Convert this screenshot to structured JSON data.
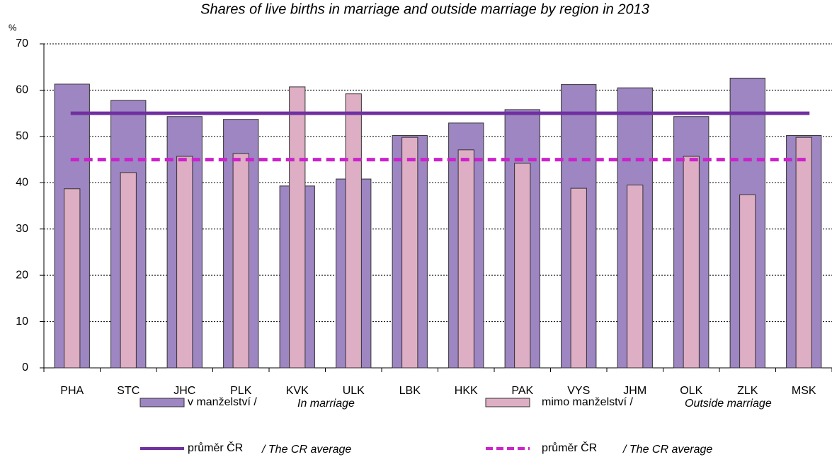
{
  "chart_data": {
    "type": "bar",
    "subtitle": "Shares of live births in marriage and outside marriage by region in 2013",
    "y_unit": "%",
    "categories": [
      "PHA",
      "STC",
      "JHC",
      "PLK",
      "KVK",
      "ULK",
      "LBK",
      "HKK",
      "PAK",
      "VYS",
      "JHM",
      "OLK",
      "ZLK",
      "MSK"
    ],
    "series": [
      {
        "name": "v manželství /",
        "name_en": "In marriage",
        "color": "#9d86c2",
        "values": [
          61.3,
          57.8,
          54.3,
          53.7,
          39.3,
          40.8,
          50.2,
          52.9,
          55.8,
          61.2,
          60.5,
          54.3,
          62.6,
          50.2
        ]
      },
      {
        "name": "mimo manželství /",
        "name_en": "Outside marriage",
        "color": "#deaec4",
        "values": [
          38.7,
          42.2,
          45.7,
          46.3,
          60.7,
          59.2,
          49.8,
          47.1,
          44.2,
          38.8,
          39.5,
          45.7,
          37.4,
          49.8
        ]
      }
    ],
    "averages": [
      {
        "name": "průměr ČR",
        "name_en": "/ The CR average",
        "color": "#7030a0",
        "dashed": false,
        "value": 55
      },
      {
        "name": "průměr ČR",
        "name_en": "/ The CR average",
        "color": "#cc22cc",
        "dashed": true,
        "value": 45
      }
    ],
    "ylim": [
      0,
      70
    ],
    "yticks": [
      0,
      10,
      20,
      30,
      40,
      50,
      60,
      70
    ],
    "grid": true
  }
}
